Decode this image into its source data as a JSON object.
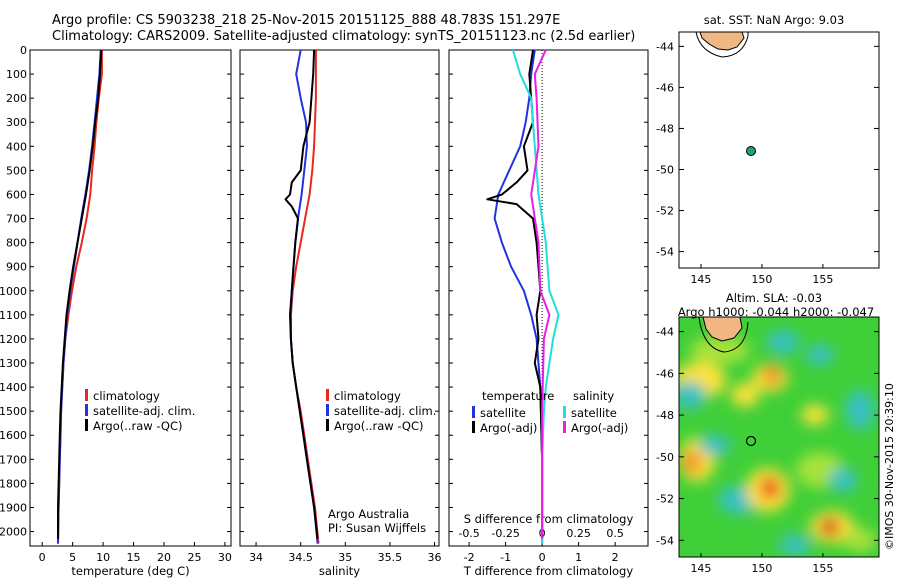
{
  "header": {
    "line1": "Argo profile: CS 5903238_218 25-Nov-2015 20151125_888 48.783S 151.297E",
    "line2": "Climatology: CARS2009. Satellite-adjusted climatology: synTS_20151123.nc (2.5d earlier)"
  },
  "depth_ticks": [
    "0",
    "100",
    "200",
    "300",
    "400",
    "500",
    "600",
    "700",
    "800",
    "900",
    "1000",
    "1100",
    "1200",
    "1300",
    "1400",
    "1500",
    "1600",
    "1700",
    "1800",
    "1900",
    "2000"
  ],
  "colors": {
    "climatology": "#e8281e",
    "satellite": "#2233dd",
    "argo": "#000000",
    "sal_satellite": "#22dddd",
    "sal_argo": "#e81ee8"
  },
  "chart_data": [
    {
      "type": "line",
      "xlabel": "temperature (deg C)",
      "xticks": [
        "0",
        "5",
        "10",
        "15",
        "20",
        "25",
        "30"
      ],
      "xlim": [
        -2,
        31
      ],
      "ylim": [
        0,
        2060
      ],
      "legend": [
        "climatology",
        "satellite-adj. clim.",
        "Argo(..raw -QC)"
      ],
      "series": [
        {
          "name": "climatology",
          "values": [
            [
              9.8,
              0
            ],
            [
              9.8,
              100
            ],
            [
              9.3,
              200
            ],
            [
              8.9,
              300
            ],
            [
              8.6,
              400
            ],
            [
              8.2,
              500
            ],
            [
              7.9,
              600
            ],
            [
              7.3,
              700
            ],
            [
              6.5,
              800
            ],
            [
              5.6,
              900
            ],
            [
              4.9,
              1000
            ],
            [
              4.3,
              1100
            ],
            [
              3.8,
              1200
            ],
            [
              3.5,
              1300
            ],
            [
              3.3,
              1400
            ],
            [
              3.1,
              1500
            ],
            [
              3.0,
              1600
            ],
            [
              2.9,
              1700
            ],
            [
              2.8,
              1800
            ],
            [
              2.7,
              1900
            ],
            [
              2.6,
              2050
            ]
          ]
        },
        {
          "name": "satellite-adj. clim.",
          "values": [
            [
              9.6,
              0
            ],
            [
              9.4,
              100
            ],
            [
              9.0,
              200
            ],
            [
              8.6,
              300
            ],
            [
              8.2,
              400
            ],
            [
              7.7,
              500
            ],
            [
              7.1,
              600
            ],
            [
              6.4,
              700
            ],
            [
              5.8,
              800
            ],
            [
              5.2,
              900
            ],
            [
              4.6,
              1000
            ],
            [
              4.1,
              1100
            ],
            [
              3.8,
              1200
            ],
            [
              3.5,
              1300
            ],
            [
              3.3,
              1400
            ],
            [
              3.1,
              1500
            ],
            [
              3.0,
              1600
            ],
            [
              2.9,
              1700
            ],
            [
              2.8,
              1800
            ],
            [
              2.7,
              1900
            ],
            [
              2.6,
              2050
            ]
          ]
        },
        {
          "name": "Argo(..raw -QC)",
          "values": [
            [
              9.7,
              0
            ],
            [
              9.5,
              100
            ],
            [
              9.2,
              200
            ],
            [
              8.7,
              300
            ],
            [
              8.3,
              400
            ],
            [
              7.8,
              500
            ],
            [
              7.2,
              600
            ],
            [
              6.5,
              700
            ],
            [
              5.8,
              800
            ],
            [
              5.1,
              900
            ],
            [
              4.5,
              1000
            ],
            [
              4.0,
              1100
            ],
            [
              3.7,
              1200
            ],
            [
              3.4,
              1300
            ],
            [
              3.2,
              1400
            ],
            [
              3.0,
              1500
            ],
            [
              2.9,
              1600
            ],
            [
              2.8,
              1700
            ],
            [
              2.7,
              1800
            ],
            [
              2.6,
              1900
            ],
            [
              2.6,
              2030
            ]
          ]
        }
      ]
    },
    {
      "type": "line",
      "xlabel": "salinity",
      "xticks": [
        "34",
        "34.5",
        "35",
        "35.5",
        "36"
      ],
      "xlim": [
        33.82,
        36.05
      ],
      "ylim": [
        0,
        2060
      ],
      "legend": [
        "climatology",
        "satellite-adj. clim.",
        "Argo(..raw -QC)"
      ],
      "annotations": [
        "Argo Australia",
        "PI: Susan Wijffels"
      ],
      "series": [
        {
          "name": "climatology",
          "values": [
            [
              34.67,
              0
            ],
            [
              34.67,
              100
            ],
            [
              34.67,
              200
            ],
            [
              34.66,
              300
            ],
            [
              34.65,
              400
            ],
            [
              34.63,
              500
            ],
            [
              34.6,
              600
            ],
            [
              34.55,
              700
            ],
            [
              34.5,
              800
            ],
            [
              34.45,
              900
            ],
            [
              34.41,
              1000
            ],
            [
              34.39,
              1100
            ],
            [
              34.39,
              1200
            ],
            [
              34.41,
              1300
            ],
            [
              34.45,
              1400
            ],
            [
              34.5,
              1500
            ],
            [
              34.54,
              1600
            ],
            [
              34.58,
              1700
            ],
            [
              34.62,
              1800
            ],
            [
              34.66,
              1900
            ],
            [
              34.7,
              2050
            ]
          ]
        },
        {
          "name": "satellite-adj. clim.",
          "values": [
            [
              34.5,
              0
            ],
            [
              34.45,
              100
            ],
            [
              34.5,
              200
            ],
            [
              34.56,
              300
            ],
            [
              34.57,
              400
            ],
            [
              34.54,
              500
            ],
            [
              34.51,
              600
            ],
            [
              34.47,
              700
            ],
            [
              34.44,
              800
            ],
            [
              34.42,
              900
            ],
            [
              34.4,
              1000
            ],
            [
              34.39,
              1100
            ],
            [
              34.39,
              1200
            ],
            [
              34.41,
              1300
            ],
            [
              34.45,
              1400
            ],
            [
              34.49,
              1500
            ],
            [
              34.53,
              1600
            ],
            [
              34.57,
              1700
            ],
            [
              34.61,
              1800
            ],
            [
              34.65,
              1900
            ],
            [
              34.69,
              2050
            ]
          ]
        },
        {
          "name": "Argo(..raw -QC)",
          "values": [
            [
              34.65,
              0
            ],
            [
              34.64,
              100
            ],
            [
              34.62,
              200
            ],
            [
              34.6,
              300
            ],
            [
              34.53,
              400
            ],
            [
              34.5,
              500
            ],
            [
              34.4,
              550
            ],
            [
              34.38,
              600
            ],
            [
              34.33,
              620
            ],
            [
              34.4,
              650
            ],
            [
              34.47,
              700
            ],
            [
              34.44,
              800
            ],
            [
              34.42,
              900
            ],
            [
              34.4,
              1000
            ],
            [
              34.38,
              1100
            ],
            [
              34.39,
              1200
            ],
            [
              34.41,
              1300
            ],
            [
              34.45,
              1400
            ],
            [
              34.49,
              1500
            ],
            [
              34.53,
              1600
            ],
            [
              34.57,
              1700
            ],
            [
              34.61,
              1800
            ],
            [
              34.65,
              1900
            ],
            [
              34.69,
              2030
            ]
          ]
        }
      ]
    },
    {
      "type": "line",
      "xlabel": "T difference from climatology",
      "top_axis_label": "S difference from climatology",
      "xticks": [
        "-2",
        "-1",
        "0",
        "1",
        "2"
      ],
      "top_xticks": [
        "-0.5",
        "-0.25",
        "0",
        "0.25",
        "0.5"
      ],
      "xlim": [
        -2.55,
        2.9
      ],
      "ylim": [
        0,
        2060
      ],
      "legend_groups": [
        {
          "title": "temperature",
          "entries": [
            "satellite",
            "Argo(-adj)"
          ]
        },
        {
          "title": "salinity",
          "entries": [
            "satellite",
            "Argo(-adj)"
          ]
        }
      ],
      "series": [
        {
          "name": "satellite",
          "group": "temperature",
          "values": [
            [
              -0.2,
              0
            ],
            [
              -0.3,
              100
            ],
            [
              -0.35,
              200
            ],
            [
              -0.45,
              300
            ],
            [
              -0.6,
              400
            ],
            [
              -0.9,
              500
            ],
            [
              -1.2,
              600
            ],
            [
              -1.3,
              700
            ],
            [
              -1.1,
              800
            ],
            [
              -0.85,
              900
            ],
            [
              -0.5,
              1000
            ],
            [
              -0.3,
              1100
            ],
            [
              -0.15,
              1200
            ],
            [
              -0.05,
              1400
            ],
            [
              0,
              1700
            ],
            [
              0,
              2050
            ]
          ]
        },
        {
          "name": "Argo(-adj)",
          "group": "temperature",
          "values": [
            [
              -0.25,
              0
            ],
            [
              -0.35,
              100
            ],
            [
              -0.3,
              200
            ],
            [
              -0.25,
              300
            ],
            [
              -0.5,
              400
            ],
            [
              -0.4,
              500
            ],
            [
              -0.7,
              550
            ],
            [
              -1.1,
              600
            ],
            [
              -1.5,
              620
            ],
            [
              -0.7,
              640
            ],
            [
              -0.25,
              700
            ],
            [
              -0.15,
              800
            ],
            [
              -0.1,
              900
            ],
            [
              -0.05,
              1000
            ],
            [
              -0.15,
              1100
            ],
            [
              -0.1,
              1200
            ],
            [
              -0.2,
              1300
            ],
            [
              -0.05,
              1400
            ],
            [
              0,
              1700
            ],
            [
              0,
              2030
            ]
          ]
        },
        {
          "name": "satellite",
          "group": "salinity",
          "values": [
            [
              -0.8,
              0
            ],
            [
              -0.6,
              100
            ],
            [
              -0.3,
              200
            ],
            [
              -0.2,
              400
            ],
            [
              -0.1,
              600
            ],
            [
              0.1,
              800
            ],
            [
              0.2,
              1000
            ],
            [
              0.45,
              1100
            ],
            [
              0.3,
              1200
            ],
            [
              0.2,
              1300
            ],
            [
              0.1,
              1400
            ],
            [
              0.05,
              1500
            ],
            [
              0,
              1700
            ],
            [
              0,
              2050
            ]
          ]
        },
        {
          "name": "Argo(-adj)",
          "group": "salinity",
          "values": [
            [
              0.1,
              0
            ],
            [
              -0.2,
              100
            ],
            [
              -0.15,
              200
            ],
            [
              -0.1,
              400
            ],
            [
              -0.3,
              600
            ],
            [
              -0.1,
              800
            ],
            [
              -0.05,
              1000
            ],
            [
              0.2,
              1100
            ],
            [
              0.05,
              1200
            ],
            [
              0,
              1500
            ],
            [
              0,
              2030
            ]
          ]
        }
      ]
    }
  ],
  "map_top": {
    "title": "sat. SST: NaN Argo: 9.03",
    "yticks": [
      "-44",
      "-46",
      "-48",
      "-50",
      "-52",
      "-54"
    ],
    "xticks": [
      "145",
      "150",
      "155"
    ]
  },
  "map_bottom": {
    "title1": "Altim. SLA: -0.03",
    "title2": "Argo h1000: -0.044 h2000: -0.047",
    "yticks": [
      "-44",
      "-46",
      "-48",
      "-50",
      "-52",
      "-54"
    ],
    "xticks": [
      "145",
      "150",
      "155"
    ]
  },
  "credit": "©IMOS 30-Nov-2015 20:39:10"
}
